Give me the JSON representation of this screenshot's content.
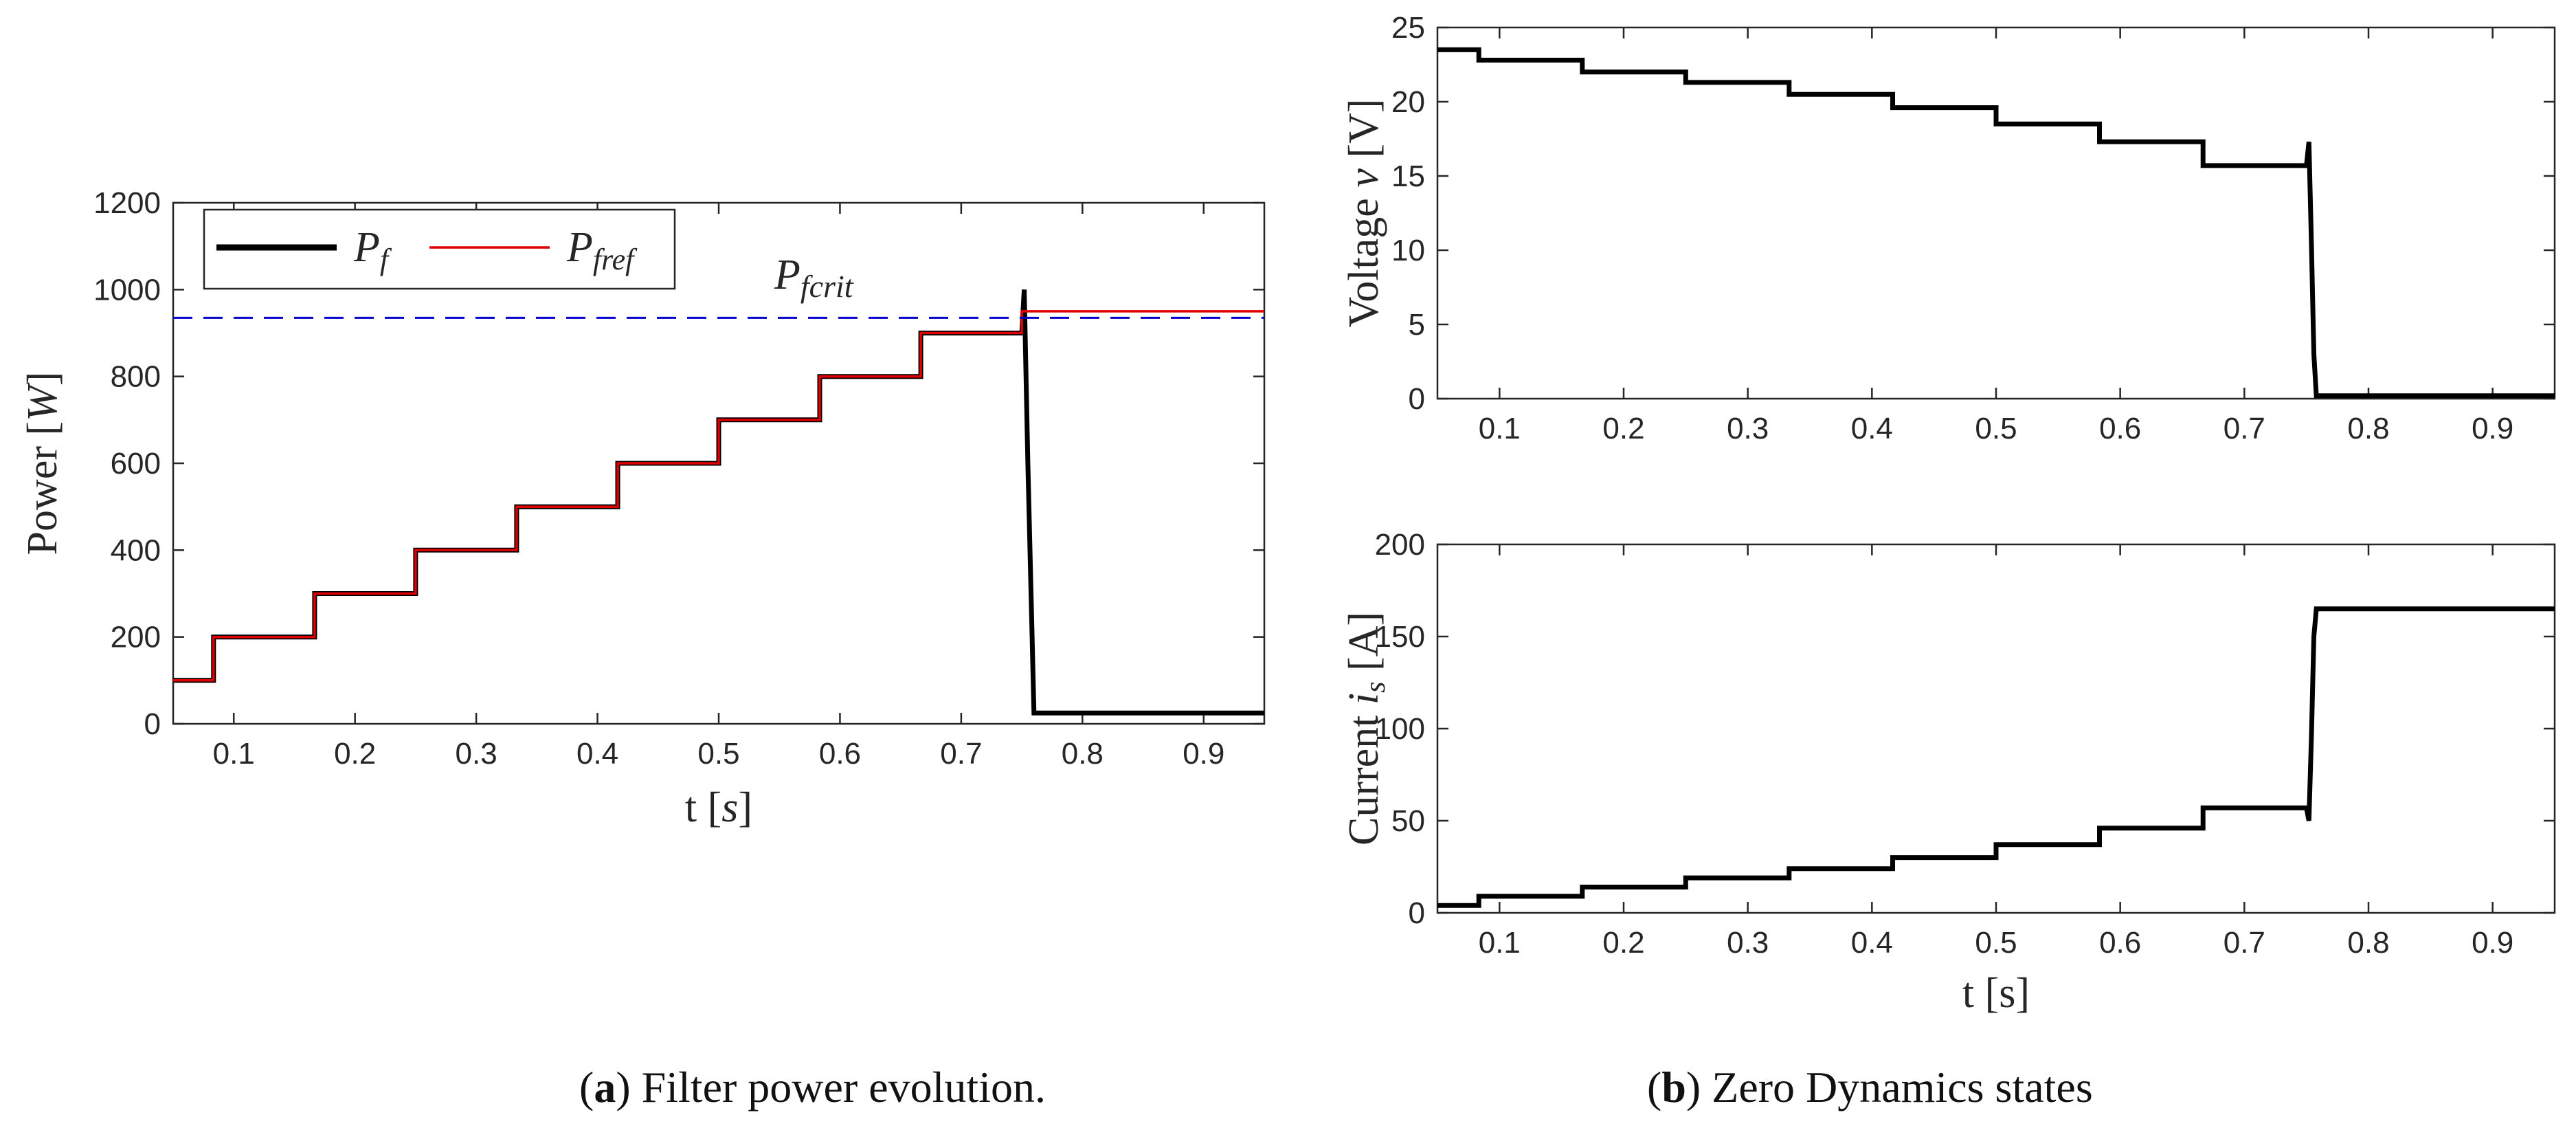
{
  "captions": {
    "a": {
      "letter": "a",
      "text": " Filter power evolution."
    },
    "b": {
      "letter": "b",
      "text": " Zero Dynamics states"
    }
  },
  "chart_data": [
    {
      "id": "power",
      "type": "line",
      "title": "",
      "xlabel": "t [s]",
      "ylabel": "Power [W]",
      "xlim": [
        0.05,
        0.95
      ],
      "ylim": [
        0,
        1200
      ],
      "xticks": [
        0.1,
        0.2,
        0.3,
        0.4,
        0.5,
        0.6,
        0.7,
        0.8,
        0.9
      ],
      "yticks": [
        0,
        200,
        400,
        600,
        800,
        1000,
        1200
      ],
      "legend": {
        "placement": "top-left",
        "entries": [
          "Pf",
          "Pfref"
        ]
      },
      "annotation": {
        "text": "Pfcrit",
        "color": "#0000cc"
      },
      "series": [
        {
          "name": "Pf",
          "color": "#000000",
          "x": [
            0.05,
            0.0833,
            0.0833,
            0.1667,
            0.1667,
            0.25,
            0.25,
            0.3333,
            0.3333,
            0.4167,
            0.4167,
            0.5,
            0.5,
            0.5833,
            0.5833,
            0.6667,
            0.6667,
            0.75,
            0.752,
            0.755,
            0.76,
            0.95
          ],
          "y": [
            100,
            100,
            200,
            200,
            300,
            300,
            400,
            400,
            500,
            500,
            600,
            600,
            700,
            700,
            800,
            800,
            900,
            900,
            1000,
            600,
            25,
            25
          ]
        },
        {
          "name": "Pfref",
          "color": "#e00000",
          "x": [
            0.05,
            0.0833,
            0.0833,
            0.1667,
            0.1667,
            0.25,
            0.25,
            0.3333,
            0.3333,
            0.4167,
            0.4167,
            0.5,
            0.5,
            0.5833,
            0.5833,
            0.6667,
            0.6667,
            0.75,
            0.75,
            0.95
          ],
          "y": [
            100,
            100,
            200,
            200,
            300,
            300,
            400,
            400,
            500,
            500,
            600,
            600,
            700,
            700,
            800,
            800,
            900,
            900,
            950,
            950
          ]
        },
        {
          "name": "Pfcrit",
          "color": "#0000cc",
          "style": "dashed",
          "x": [
            0.05,
            0.95
          ],
          "y": [
            935,
            935
          ]
        }
      ]
    },
    {
      "id": "voltage",
      "type": "line",
      "title": "",
      "xlabel": "",
      "ylabel": "Voltage v [V]",
      "xlim": [
        0.05,
        0.95
      ],
      "ylim": [
        0,
        25
      ],
      "xticks": [
        0.1,
        0.2,
        0.3,
        0.4,
        0.5,
        0.6,
        0.7,
        0.8,
        0.9
      ],
      "yticks": [
        0,
        5,
        10,
        15,
        20,
        25
      ],
      "series": [
        {
          "name": "v",
          "color": "#000000",
          "x": [
            0.05,
            0.0833,
            0.0833,
            0.1667,
            0.1667,
            0.25,
            0.25,
            0.3333,
            0.3333,
            0.4167,
            0.4167,
            0.5,
            0.5,
            0.5833,
            0.5833,
            0.6667,
            0.6667,
            0.75,
            0.752,
            0.754,
            0.756,
            0.758,
            0.95
          ],
          "y": [
            23.5,
            23.5,
            22.8,
            22.8,
            22.0,
            22.0,
            21.3,
            21.3,
            20.5,
            20.5,
            19.6,
            19.6,
            18.5,
            18.5,
            17.3,
            17.3,
            15.7,
            15.7,
            17.3,
            10.5,
            3.0,
            0.2,
            0.2
          ]
        }
      ]
    },
    {
      "id": "current",
      "type": "line",
      "title": "",
      "xlabel": "t [s]",
      "ylabel": "Current is [A]",
      "xlim": [
        0.05,
        0.95
      ],
      "ylim": [
        0,
        200
      ],
      "xticks": [
        0.1,
        0.2,
        0.3,
        0.4,
        0.5,
        0.6,
        0.7,
        0.8,
        0.9
      ],
      "yticks": [
        0,
        50,
        100,
        150,
        200
      ],
      "series": [
        {
          "name": "is",
          "color": "#000000",
          "x": [
            0.05,
            0.0833,
            0.0833,
            0.1667,
            0.1667,
            0.25,
            0.25,
            0.3333,
            0.3333,
            0.4167,
            0.4167,
            0.5,
            0.5,
            0.5833,
            0.5833,
            0.6667,
            0.6667,
            0.75,
            0.752,
            0.754,
            0.756,
            0.758,
            0.95
          ],
          "y": [
            4,
            4,
            9,
            9,
            14,
            14,
            19,
            19,
            24,
            24,
            30,
            30,
            37,
            37,
            46,
            46,
            57,
            57,
            50,
            95,
            150,
            165,
            165
          ]
        }
      ]
    }
  ]
}
